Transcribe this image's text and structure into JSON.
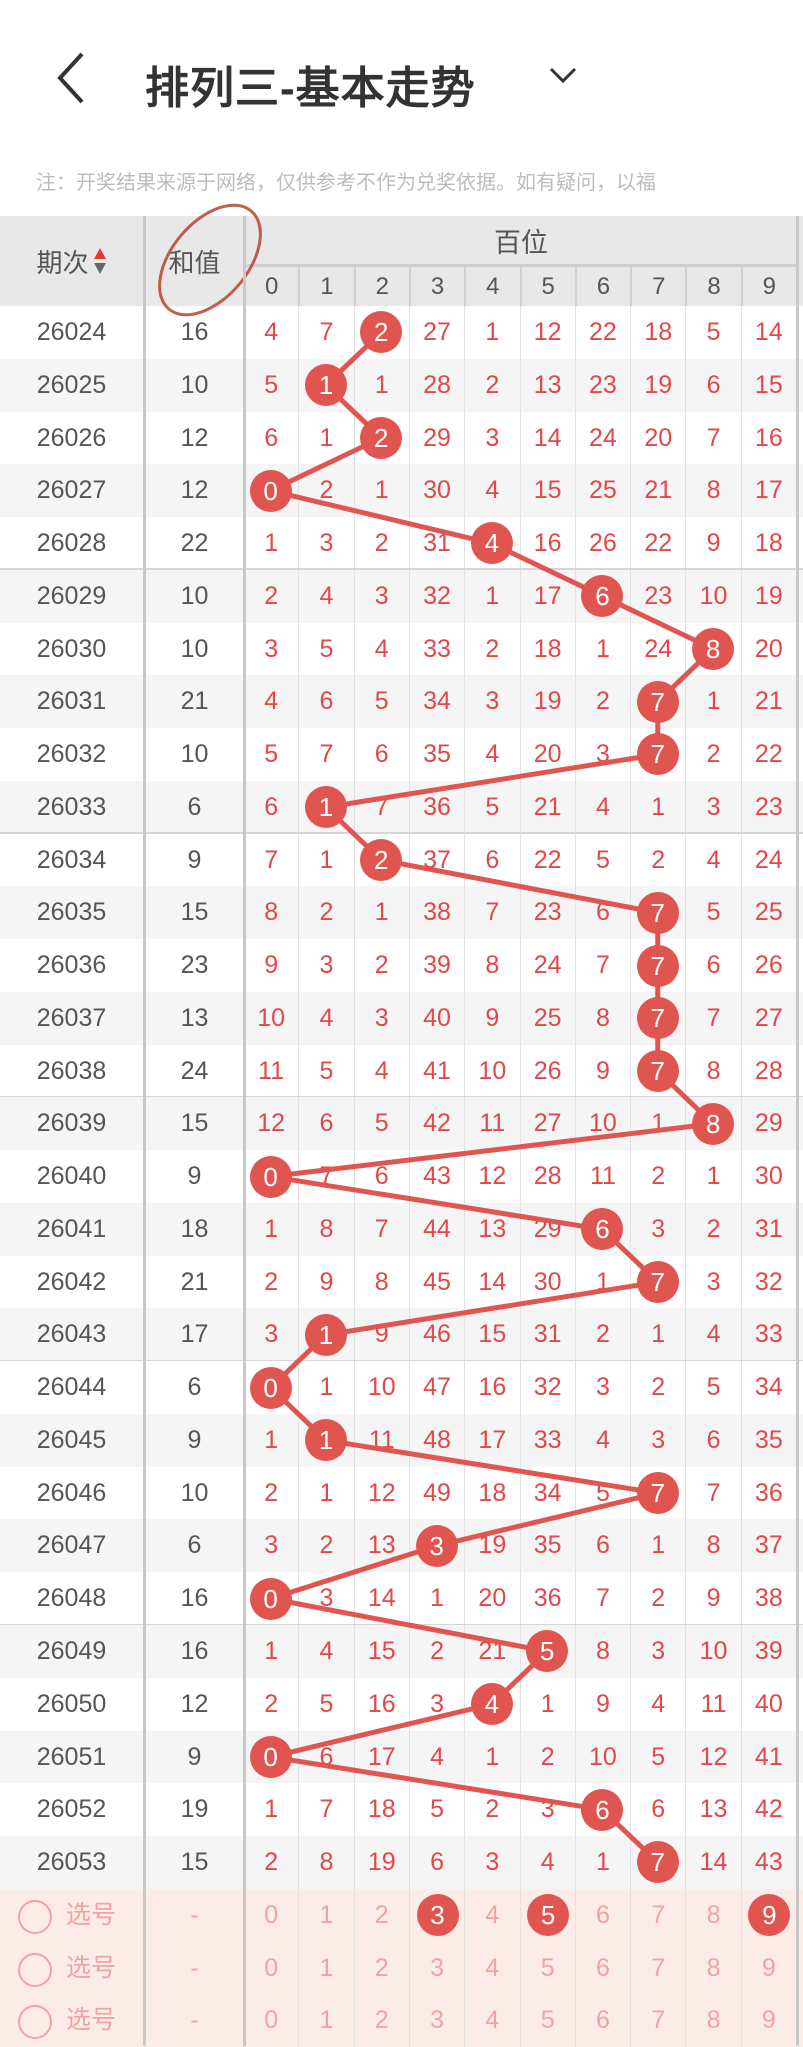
{
  "header": {
    "title": "排列三-基本走势",
    "back_icon": "chevron-left-icon",
    "dropdown_icon": "chevron-down-icon"
  },
  "note": "注：开奖结果来源于网络，仅供参考不作为兑奖依据。如有疑问，以福",
  "table": {
    "col_period": "期次",
    "col_sum": "和值",
    "group_label": "百位",
    "digits": [
      "0",
      "1",
      "2",
      "3",
      "4",
      "5",
      "6",
      "7",
      "8",
      "9"
    ],
    "colors": {
      "ball": "#e05550",
      "miss_text": "#e2474a",
      "sort_up": "#e53935",
      "sort_down": "#666666",
      "annotation": "#b5452e"
    },
    "rows": [
      {
        "period": "26024",
        "sum": "16",
        "hit": 2,
        "cells": [
          4,
          7,
          2,
          27,
          1,
          12,
          22,
          18,
          5,
          14
        ]
      },
      {
        "period": "26025",
        "sum": "10",
        "hit": 1,
        "cells": [
          5,
          1,
          1,
          28,
          2,
          13,
          23,
          19,
          6,
          15
        ]
      },
      {
        "period": "26026",
        "sum": "12",
        "hit": 2,
        "cells": [
          6,
          1,
          2,
          29,
          3,
          14,
          24,
          20,
          7,
          16
        ]
      },
      {
        "period": "26027",
        "sum": "12",
        "hit": 0,
        "cells": [
          0,
          2,
          1,
          30,
          4,
          15,
          25,
          21,
          8,
          17
        ]
      },
      {
        "period": "26028",
        "sum": "22",
        "hit": 4,
        "cells": [
          1,
          3,
          2,
          31,
          4,
          16,
          26,
          22,
          9,
          18
        ]
      },
      {
        "period": "26029",
        "sum": "10",
        "hit": 6,
        "cells": [
          2,
          4,
          3,
          32,
          1,
          17,
          6,
          23,
          10,
          19
        ]
      },
      {
        "period": "26030",
        "sum": "10",
        "hit": 8,
        "cells": [
          3,
          5,
          4,
          33,
          2,
          18,
          1,
          24,
          8,
          20
        ]
      },
      {
        "period": "26031",
        "sum": "21",
        "hit": 7,
        "cells": [
          4,
          6,
          5,
          34,
          3,
          19,
          2,
          7,
          1,
          21
        ]
      },
      {
        "period": "26032",
        "sum": "10",
        "hit": 7,
        "cells": [
          5,
          7,
          6,
          35,
          4,
          20,
          3,
          7,
          2,
          22
        ]
      },
      {
        "period": "26033",
        "sum": "6",
        "hit": 1,
        "cells": [
          6,
          1,
          7,
          36,
          5,
          21,
          4,
          1,
          3,
          23
        ]
      },
      {
        "period": "26034",
        "sum": "9",
        "hit": 2,
        "cells": [
          7,
          1,
          2,
          37,
          6,
          22,
          5,
          2,
          4,
          24
        ]
      },
      {
        "period": "26035",
        "sum": "15",
        "hit": 7,
        "cells": [
          8,
          2,
          1,
          38,
          7,
          23,
          6,
          7,
          5,
          25
        ]
      },
      {
        "period": "26036",
        "sum": "23",
        "hit": 7,
        "cells": [
          9,
          3,
          2,
          39,
          8,
          24,
          7,
          7,
          6,
          26
        ]
      },
      {
        "period": "26037",
        "sum": "13",
        "hit": 7,
        "cells": [
          10,
          4,
          3,
          40,
          9,
          25,
          8,
          7,
          7,
          27
        ]
      },
      {
        "period": "26038",
        "sum": "24",
        "hit": 7,
        "cells": [
          11,
          5,
          4,
          41,
          10,
          26,
          9,
          7,
          8,
          28
        ]
      },
      {
        "period": "26039",
        "sum": "15",
        "hit": 8,
        "cells": [
          12,
          6,
          5,
          42,
          11,
          27,
          10,
          1,
          8,
          29
        ]
      },
      {
        "period": "26040",
        "sum": "9",
        "hit": 0,
        "cells": [
          0,
          7,
          6,
          43,
          12,
          28,
          11,
          2,
          1,
          30
        ]
      },
      {
        "period": "26041",
        "sum": "18",
        "hit": 6,
        "cells": [
          1,
          8,
          7,
          44,
          13,
          29,
          6,
          3,
          2,
          31
        ]
      },
      {
        "period": "26042",
        "sum": "21",
        "hit": 7,
        "cells": [
          2,
          9,
          8,
          45,
          14,
          30,
          1,
          7,
          3,
          32
        ]
      },
      {
        "period": "26043",
        "sum": "17",
        "hit": 1,
        "cells": [
          3,
          1,
          9,
          46,
          15,
          31,
          2,
          1,
          4,
          33
        ]
      },
      {
        "period": "26044",
        "sum": "6",
        "hit": 0,
        "cells": [
          0,
          1,
          10,
          47,
          16,
          32,
          3,
          2,
          5,
          34
        ]
      },
      {
        "period": "26045",
        "sum": "9",
        "hit": 1,
        "cells": [
          1,
          1,
          11,
          48,
          17,
          33,
          4,
          3,
          6,
          35
        ]
      },
      {
        "period": "26046",
        "sum": "10",
        "hit": 7,
        "cells": [
          2,
          1,
          12,
          49,
          18,
          34,
          5,
          7,
          7,
          36
        ]
      },
      {
        "period": "26047",
        "sum": "6",
        "hit": 3,
        "cells": [
          3,
          2,
          13,
          3,
          19,
          35,
          6,
          1,
          8,
          37
        ]
      },
      {
        "period": "26048",
        "sum": "16",
        "hit": 0,
        "cells": [
          0,
          3,
          14,
          1,
          20,
          36,
          7,
          2,
          9,
          38
        ]
      },
      {
        "period": "26049",
        "sum": "16",
        "hit": 5,
        "cells": [
          1,
          4,
          15,
          2,
          21,
          5,
          8,
          3,
          10,
          39
        ]
      },
      {
        "period": "26050",
        "sum": "12",
        "hit": 4,
        "cells": [
          2,
          5,
          16,
          3,
          4,
          1,
          9,
          4,
          11,
          40
        ]
      },
      {
        "period": "26051",
        "sum": "9",
        "hit": 0,
        "cells": [
          0,
          6,
          17,
          4,
          1,
          2,
          10,
          5,
          12,
          41
        ]
      },
      {
        "period": "26052",
        "sum": "19",
        "hit": 6,
        "cells": [
          1,
          7,
          18,
          5,
          2,
          3,
          6,
          6,
          13,
          42
        ]
      },
      {
        "period": "26053",
        "sum": "15",
        "hit": 7,
        "cells": [
          2,
          8,
          19,
          6,
          3,
          4,
          1,
          7,
          14,
          43
        ]
      }
    ],
    "select_rows": [
      {
        "label": "选号",
        "sum": "-",
        "selected": [
          3,
          5,
          9
        ]
      },
      {
        "label": "选号",
        "sum": "-",
        "selected": []
      },
      {
        "label": "选号",
        "sum": "-",
        "selected": []
      }
    ]
  }
}
